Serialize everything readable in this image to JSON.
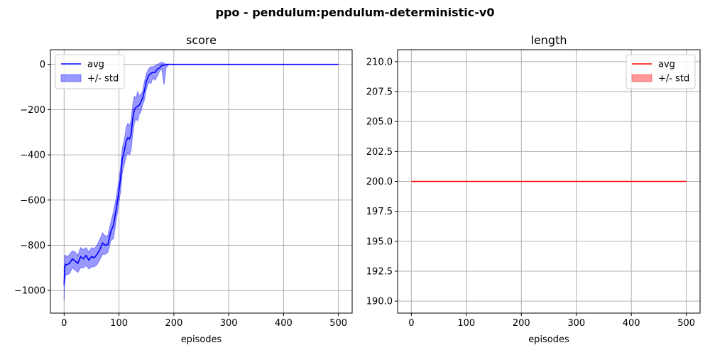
{
  "figure": {
    "title": "ppo - pendulum:pendulum-deterministic-v0"
  },
  "chart_data": [
    {
      "type": "line",
      "title": "score",
      "xlabel": "episodes",
      "ylabel": "",
      "xlim": [
        -25,
        525
      ],
      "ylim": [
        -1100,
        65
      ],
      "xticks": [
        0,
        100,
        200,
        300,
        400,
        500
      ],
      "yticks": [
        -1000,
        -800,
        -600,
        -400,
        -200,
        0
      ],
      "grid": true,
      "legend": {
        "placement": "upper-left",
        "entries": [
          "avg",
          "+/- std"
        ]
      },
      "series": [
        {
          "name": "avg",
          "kind": "line",
          "color": "#0000ff",
          "x": [
            0,
            1,
            3,
            6,
            10,
            15,
            20,
            25,
            30,
            35,
            40,
            45,
            50,
            55,
            60,
            65,
            70,
            75,
            80,
            85,
            90,
            95,
            100,
            103,
            106,
            110,
            113,
            116,
            119,
            122,
            125,
            128,
            131,
            134,
            137,
            140,
            143,
            146,
            150,
            154,
            158,
            162,
            166,
            170,
            174,
            178,
            182,
            186,
            190,
            200,
            250,
            300,
            350,
            400,
            450,
            500
          ],
          "y": [
            -975,
            -900,
            -885,
            -885,
            -880,
            -860,
            -870,
            -880,
            -850,
            -860,
            -845,
            -865,
            -850,
            -855,
            -840,
            -820,
            -790,
            -800,
            -795,
            -740,
            -710,
            -640,
            -560,
            -500,
            -420,
            -380,
            -340,
            -325,
            -330,
            -310,
            -240,
            -200,
            -190,
            -185,
            -180,
            -165,
            -150,
            -120,
            -75,
            -50,
            -40,
            -35,
            -35,
            -20,
            -15,
            -5,
            -3,
            -2,
            0,
            0,
            0,
            0,
            0,
            0,
            0,
            0
          ]
        },
        {
          "name": "+/- std",
          "kind": "band",
          "color": "#0000ff",
          "opacity": 0.4,
          "x": [
            0,
            1,
            3,
            6,
            10,
            15,
            20,
            25,
            30,
            35,
            40,
            45,
            50,
            55,
            60,
            65,
            70,
            75,
            80,
            85,
            90,
            95,
            100,
            103,
            106,
            110,
            113,
            116,
            119,
            122,
            125,
            128,
            131,
            134,
            137,
            140,
            143,
            146,
            150,
            154,
            158,
            162,
            166,
            170,
            174,
            178,
            182,
            186,
            190,
            200,
            250,
            300,
            350,
            400,
            450,
            500
          ],
          "lower": [
            -1045,
            -960,
            -930,
            -930,
            -925,
            -900,
            -910,
            -920,
            -900,
            -900,
            -890,
            -905,
            -895,
            -895,
            -885,
            -865,
            -840,
            -840,
            -830,
            -780,
            -770,
            -690,
            -610,
            -560,
            -480,
            -440,
            -410,
            -390,
            -400,
            -380,
            -310,
            -260,
            -240,
            -250,
            -220,
            -210,
            -180,
            -160,
            -110,
            -80,
            -85,
            -60,
            -70,
            -50,
            -30,
            -20,
            -90,
            -15,
            -2,
            0,
            0,
            0,
            0,
            0,
            0,
            0
          ],
          "upper": [
            -905,
            -845,
            -845,
            -850,
            -840,
            -825,
            -830,
            -845,
            -810,
            -820,
            -810,
            -830,
            -810,
            -815,
            -800,
            -775,
            -745,
            -760,
            -755,
            -700,
            -650,
            -590,
            -510,
            -450,
            -370,
            -330,
            -280,
            -260,
            -270,
            -250,
            -180,
            -140,
            -150,
            -120,
            -140,
            -130,
            -120,
            -80,
            -40,
            -20,
            -10,
            -10,
            -5,
            0,
            5,
            10,
            5,
            2,
            2,
            0,
            0,
            0,
            0,
            0,
            0,
            0
          ]
        }
      ]
    },
    {
      "type": "line",
      "title": "length",
      "xlabel": "episodes",
      "ylabel": "",
      "xlim": [
        -25,
        525
      ],
      "ylim": [
        189,
        211
      ],
      "xticks": [
        0,
        100,
        200,
        300,
        400,
        500
      ],
      "yticks": [
        190.0,
        192.5,
        195.0,
        197.5,
        200.0,
        202.5,
        205.0,
        207.5,
        210.0
      ],
      "ytick_labels": [
        "190.0",
        "192.5",
        "195.0",
        "197.5",
        "200.0",
        "202.5",
        "205.0",
        "207.5",
        "210.0"
      ],
      "grid": true,
      "legend": {
        "placement": "upper-right",
        "entries": [
          "avg",
          "+/- std"
        ]
      },
      "series": [
        {
          "name": "avg",
          "kind": "line",
          "color": "#ff0000",
          "x": [
            0,
            500
          ],
          "y": [
            200,
            200
          ]
        },
        {
          "name": "+/- std",
          "kind": "band",
          "color": "#ff0000",
          "opacity": 0.4,
          "x": [
            0,
            500
          ],
          "lower": [
            200,
            200
          ],
          "upper": [
            200,
            200
          ]
        }
      ]
    }
  ]
}
